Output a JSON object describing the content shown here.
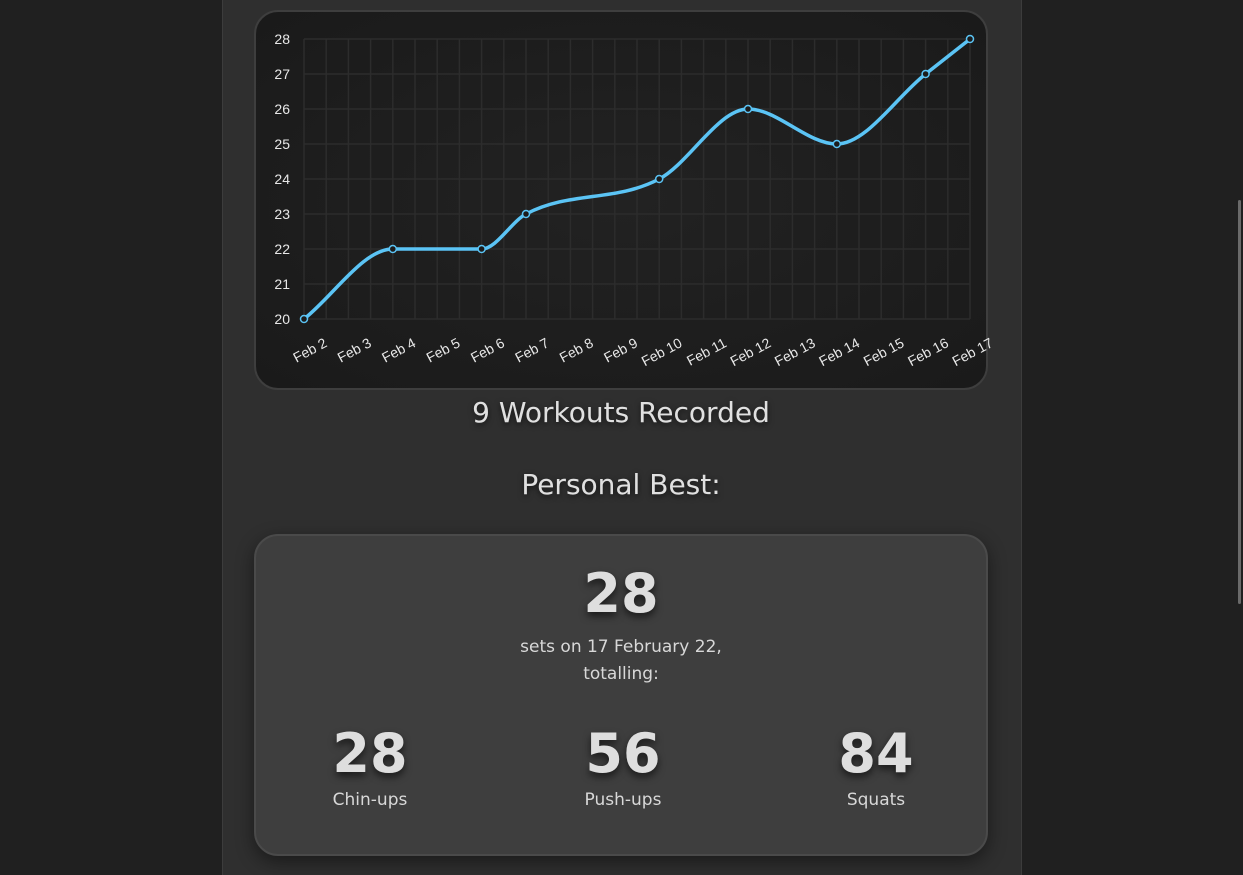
{
  "chart_data": {
    "type": "line",
    "x": [
      "Feb 2",
      "Feb 3",
      "Feb 4",
      "Feb 5",
      "Feb 6",
      "Feb 7",
      "Feb 8",
      "Feb 9",
      "Feb 10",
      "Feb 11",
      "Feb 12",
      "Feb 13",
      "Feb 14",
      "Feb 15",
      "Feb 16",
      "Feb 17"
    ],
    "points": [
      {
        "x": "Feb 2",
        "y": 20
      },
      {
        "x": "Feb 4",
        "y": 22
      },
      {
        "x": "Feb 6",
        "y": 22
      },
      {
        "x": "Feb 7",
        "y": 23
      },
      {
        "x": "Feb 10",
        "y": 24
      },
      {
        "x": "Feb 12",
        "y": 26
      },
      {
        "x": "Feb 14",
        "y": 25
      },
      {
        "x": "Feb 16",
        "y": 27
      },
      {
        "x": "Feb 17",
        "y": 28
      }
    ],
    "y_ticks": [
      20,
      21,
      22,
      23,
      24,
      25,
      26,
      27,
      28
    ],
    "ylim": [
      20,
      28
    ],
    "grid": true,
    "line_color": "#5bc4f5",
    "title": "",
    "xlabel": "",
    "ylabel": ""
  },
  "summary": {
    "workouts_text": "9 Workouts Recorded",
    "personal_best_heading": "Personal Best:"
  },
  "personal_best": {
    "sets": "28",
    "description_line1": "sets on 17 February 22,",
    "description_line2": "totalling:",
    "stats": [
      {
        "value": "28",
        "label": "Chin-ups"
      },
      {
        "value": "56",
        "label": "Push-ups"
      },
      {
        "value": "84",
        "label": "Squats"
      }
    ]
  }
}
